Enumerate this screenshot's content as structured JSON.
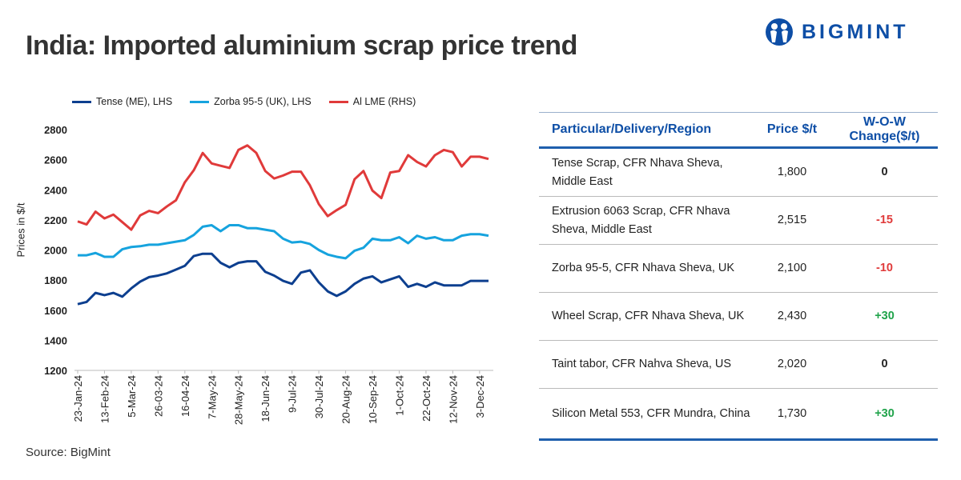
{
  "title": "India: Imported aluminium scrap price trend",
  "logo": {
    "text": "BIGMINT"
  },
  "source": "Source: BigMint",
  "colors": {
    "tense": "#0d3f8f",
    "zorba": "#16a3de",
    "lme": "#e03a3a",
    "header": "#0d4ea6",
    "neg": "#e03a3a",
    "pos": "#1fa34a"
  },
  "chart_data": {
    "type": "line",
    "title": "India: Imported aluminium scrap price trend",
    "ylabel": "Prices in $/t",
    "ylim": [
      1200,
      2800
    ],
    "yticks": [
      2800,
      2600,
      2400,
      2200,
      2000,
      1800,
      1600,
      1400,
      1200
    ],
    "xticks": [
      "23-Jan-24",
      "13-Feb-24",
      "5-Mar-24",
      "26-03-24",
      "16-04-24",
      "7-May-24",
      "28-May-24",
      "18-Jun-24",
      "9-Jul-24",
      "30-Jul-24",
      "20-Aug-24",
      "10-Sep-24",
      "1-Oct-24",
      "22-Oct-24",
      "12-Nov-24",
      "3-Dec-24"
    ],
    "legend_position": "top-left",
    "grid": false,
    "series": [
      {
        "name": "Tense (ME), LHS",
        "color": "#0d3f8f",
        "values": [
          1640,
          1655,
          1715,
          1700,
          1715,
          1690,
          1745,
          1790,
          1820,
          1830,
          1845,
          1870,
          1895,
          1960,
          1975,
          1975,
          1915,
          1885,
          1915,
          1925,
          1925,
          1855,
          1830,
          1795,
          1775,
          1850,
          1865,
          1785,
          1725,
          1695,
          1725,
          1775,
          1810,
          1825,
          1785,
          1805,
          1825,
          1755,
          1775,
          1755,
          1785,
          1765,
          1765,
          1765,
          1795,
          1795,
          1795
        ]
      },
      {
        "name": "Zorba 95-5 (UK), LHS",
        "color": "#16a3de",
        "values": [
          1965,
          1965,
          1980,
          1955,
          1955,
          2005,
          2020,
          2025,
          2035,
          2035,
          2045,
          2055,
          2065,
          2100,
          2155,
          2165,
          2125,
          2165,
          2165,
          2145,
          2145,
          2135,
          2125,
          2075,
          2050,
          2055,
          2040,
          2000,
          1970,
          1955,
          1945,
          1995,
          2015,
          2075,
          2065,
          2065,
          2085,
          2045,
          2095,
          2075,
          2085,
          2065,
          2065,
          2095,
          2105,
          2105,
          2095
        ]
      },
      {
        "name": "Al LME (RHS)",
        "color": "#e03a3a",
        "values": [
          2190,
          2170,
          2255,
          2210,
          2235,
          2185,
          2135,
          2230,
          2260,
          2245,
          2290,
          2330,
          2450,
          2530,
          2645,
          2575,
          2560,
          2545,
          2665,
          2695,
          2645,
          2525,
          2475,
          2495,
          2520,
          2520,
          2430,
          2305,
          2225,
          2265,
          2300,
          2470,
          2525,
          2395,
          2345,
          2515,
          2525,
          2630,
          2585,
          2555,
          2630,
          2665,
          2650,
          2555,
          2620,
          2620,
          2605
        ]
      }
    ]
  },
  "table": {
    "headers": [
      "Particular/Delivery/Region",
      "Price $/t",
      "W-O-W Change($/t)"
    ],
    "rows": [
      {
        "name": "Tense Scrap, CFR Nhava Sheva, Middle East",
        "price": "1,800",
        "change": "0",
        "dir": "zero"
      },
      {
        "name": "Extrusion 6063 Scrap, CFR Nhava Sheva, Middle East",
        "price": "2,515",
        "change": "-15",
        "dir": "neg"
      },
      {
        "name": "Zorba 95-5, CFR Nhava Sheva, UK",
        "price": "2,100",
        "change": "-10",
        "dir": "neg"
      },
      {
        "name": "Wheel Scrap, CFR Nhava Sheva, UK",
        "price": "2,430",
        "change": "+30",
        "dir": "pos"
      },
      {
        "name": "Taint tabor, CFR Nahva Sheva, US",
        "price": "2,020",
        "change": "0",
        "dir": "zero"
      },
      {
        "name": "Silicon Metal 553, CFR Mundra, China",
        "price": "1,730",
        "change": "+30",
        "dir": "pos"
      }
    ]
  }
}
